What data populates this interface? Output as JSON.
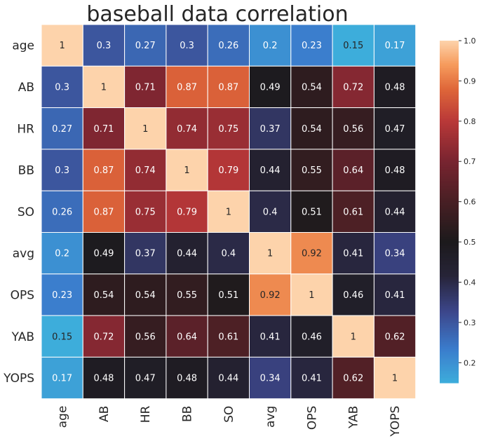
{
  "chart_data": {
    "type": "heatmap",
    "title": "baseball data correlation",
    "row_labels": [
      "age",
      "AB",
      "HR",
      "BB",
      "SO",
      "avg",
      "OPS",
      "YAB",
      "YOPS"
    ],
    "col_labels": [
      "age",
      "AB",
      "HR",
      "BB",
      "SO",
      "avg",
      "OPS",
      "YAB",
      "YOPS"
    ],
    "values": [
      [
        1,
        0.3,
        0.27,
        0.3,
        0.26,
        0.2,
        0.23,
        0.15,
        0.17
      ],
      [
        0.3,
        1,
        0.71,
        0.87,
        0.87,
        0.49,
        0.54,
        0.72,
        0.48
      ],
      [
        0.27,
        0.71,
        1,
        0.74,
        0.75,
        0.37,
        0.54,
        0.56,
        0.47
      ],
      [
        0.3,
        0.87,
        0.74,
        1,
        0.79,
        0.44,
        0.55,
        0.64,
        0.48
      ],
      [
        0.26,
        0.87,
        0.75,
        0.79,
        1,
        0.4,
        0.51,
        0.61,
        0.44
      ],
      [
        0.2,
        0.49,
        0.37,
        0.44,
        0.4,
        1,
        0.92,
        0.41,
        0.34
      ],
      [
        0.23,
        0.54,
        0.54,
        0.55,
        0.51,
        0.92,
        1,
        0.46,
        0.41
      ],
      [
        0.15,
        0.72,
        0.56,
        0.64,
        0.61,
        0.41,
        0.46,
        1,
        0.62
      ],
      [
        0.17,
        0.48,
        0.47,
        0.48,
        0.44,
        0.34,
        0.41,
        0.62,
        1
      ]
    ],
    "value_labels": [
      [
        "1",
        "0.3",
        "0.27",
        "0.3",
        "0.26",
        "0.2",
        "0.23",
        "0.15",
        "0.17"
      ],
      [
        "0.3",
        "1",
        "0.71",
        "0.87",
        "0.87",
        "0.49",
        "0.54",
        "0.72",
        "0.48"
      ],
      [
        "0.27",
        "0.71",
        "1",
        "0.74",
        "0.75",
        "0.37",
        "0.54",
        "0.56",
        "0.47"
      ],
      [
        "0.3",
        "0.87",
        "0.74",
        "1",
        "0.79",
        "0.44",
        "0.55",
        "0.64",
        "0.48"
      ],
      [
        "0.26",
        "0.87",
        "0.75",
        "0.79",
        "1",
        "0.4",
        "0.51",
        "0.61",
        "0.44"
      ],
      [
        "0.2",
        "0.49",
        "0.37",
        "0.44",
        "0.4",
        "1",
        "0.92",
        "0.41",
        "0.34"
      ],
      [
        "0.23",
        "0.54",
        "0.54",
        "0.55",
        "0.51",
        "0.92",
        "1",
        "0.46",
        "0.41"
      ],
      [
        "0.15",
        "0.72",
        "0.56",
        "0.64",
        "0.61",
        "0.41",
        "0.46",
        "1",
        "0.62"
      ],
      [
        "0.17",
        "0.48",
        "0.47",
        "0.48",
        "0.44",
        "0.34",
        "0.41",
        "0.62",
        "1"
      ]
    ],
    "colorbar": {
      "range": [
        0.15,
        1.0
      ],
      "center": 0.5,
      "ticks": [
        0.2,
        0.3,
        0.4,
        0.5,
        0.6,
        0.7,
        0.8,
        0.9,
        1.0
      ],
      "tick_labels": [
        "0.2",
        "0.3",
        "0.4",
        "0.5",
        "0.6",
        "0.7",
        "0.8",
        "0.9",
        "1.0"
      ]
    },
    "colors": {
      "low": "#3b9ad4",
      "center": "#1c1c1e",
      "high": "#fcd0a6",
      "cell_border": "#ffffff"
    },
    "legend": "right",
    "grid": false
  }
}
